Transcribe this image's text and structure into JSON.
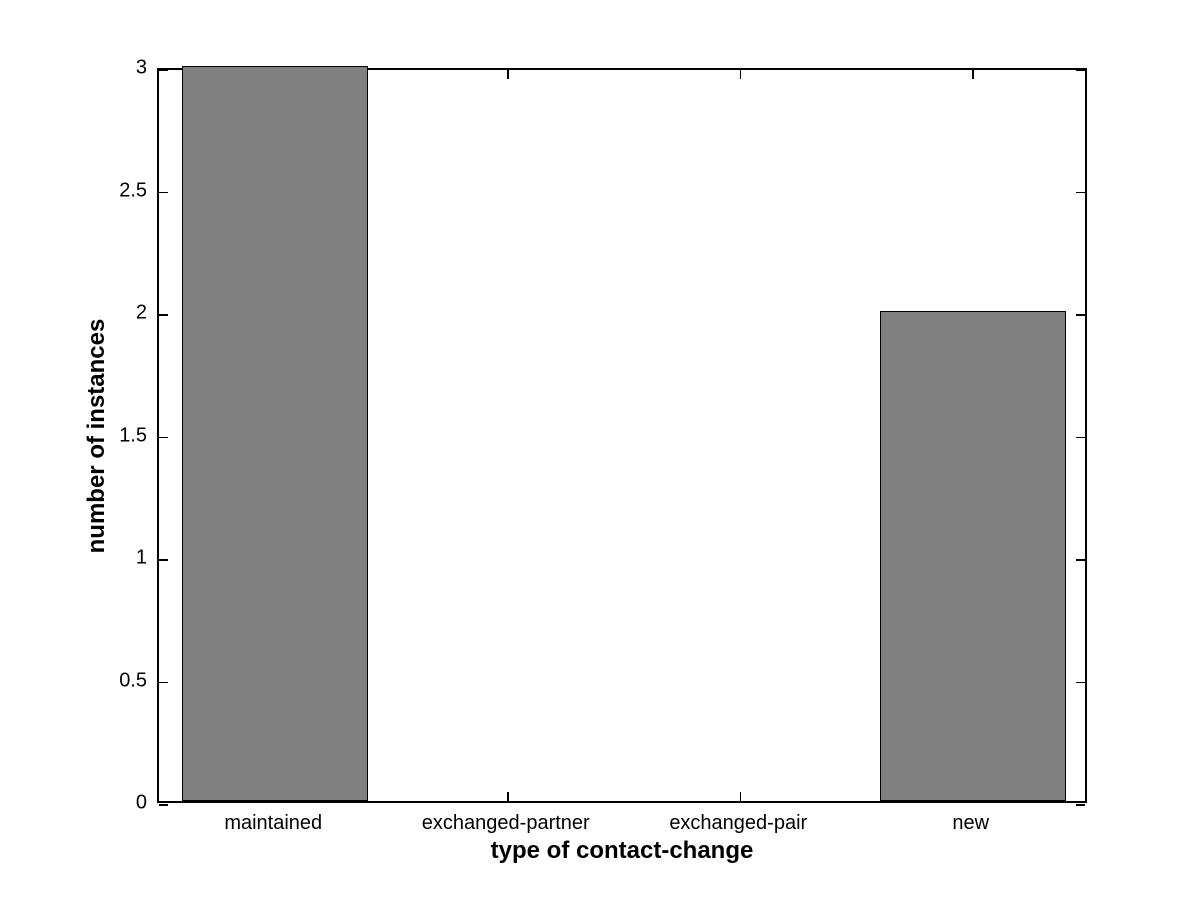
{
  "chart_data": {
    "type": "bar",
    "title": "",
    "categories": [
      "maintained",
      "exchanged-partner",
      "exchanged-pair",
      "new"
    ],
    "values": [
      3,
      0,
      0,
      2
    ],
    "xlabel": "type of contact-change",
    "ylabel": "number of instances",
    "ylim": [
      0,
      3
    ],
    "yticks": [
      0,
      0.5,
      1,
      1.5,
      2,
      2.5,
      3
    ],
    "ytick_labels": [
      "0",
      "0.5",
      "1",
      "1.5",
      "2",
      "2.5",
      "3"
    ],
    "bar_width_fraction": 0.8,
    "bar_fill_color": "#808080",
    "bar_edge_color": "#000000",
    "axis_color": "#000000",
    "background_color": "#ffffff",
    "grid": false,
    "legend": null,
    "tick_direction": "in",
    "box": true
  }
}
